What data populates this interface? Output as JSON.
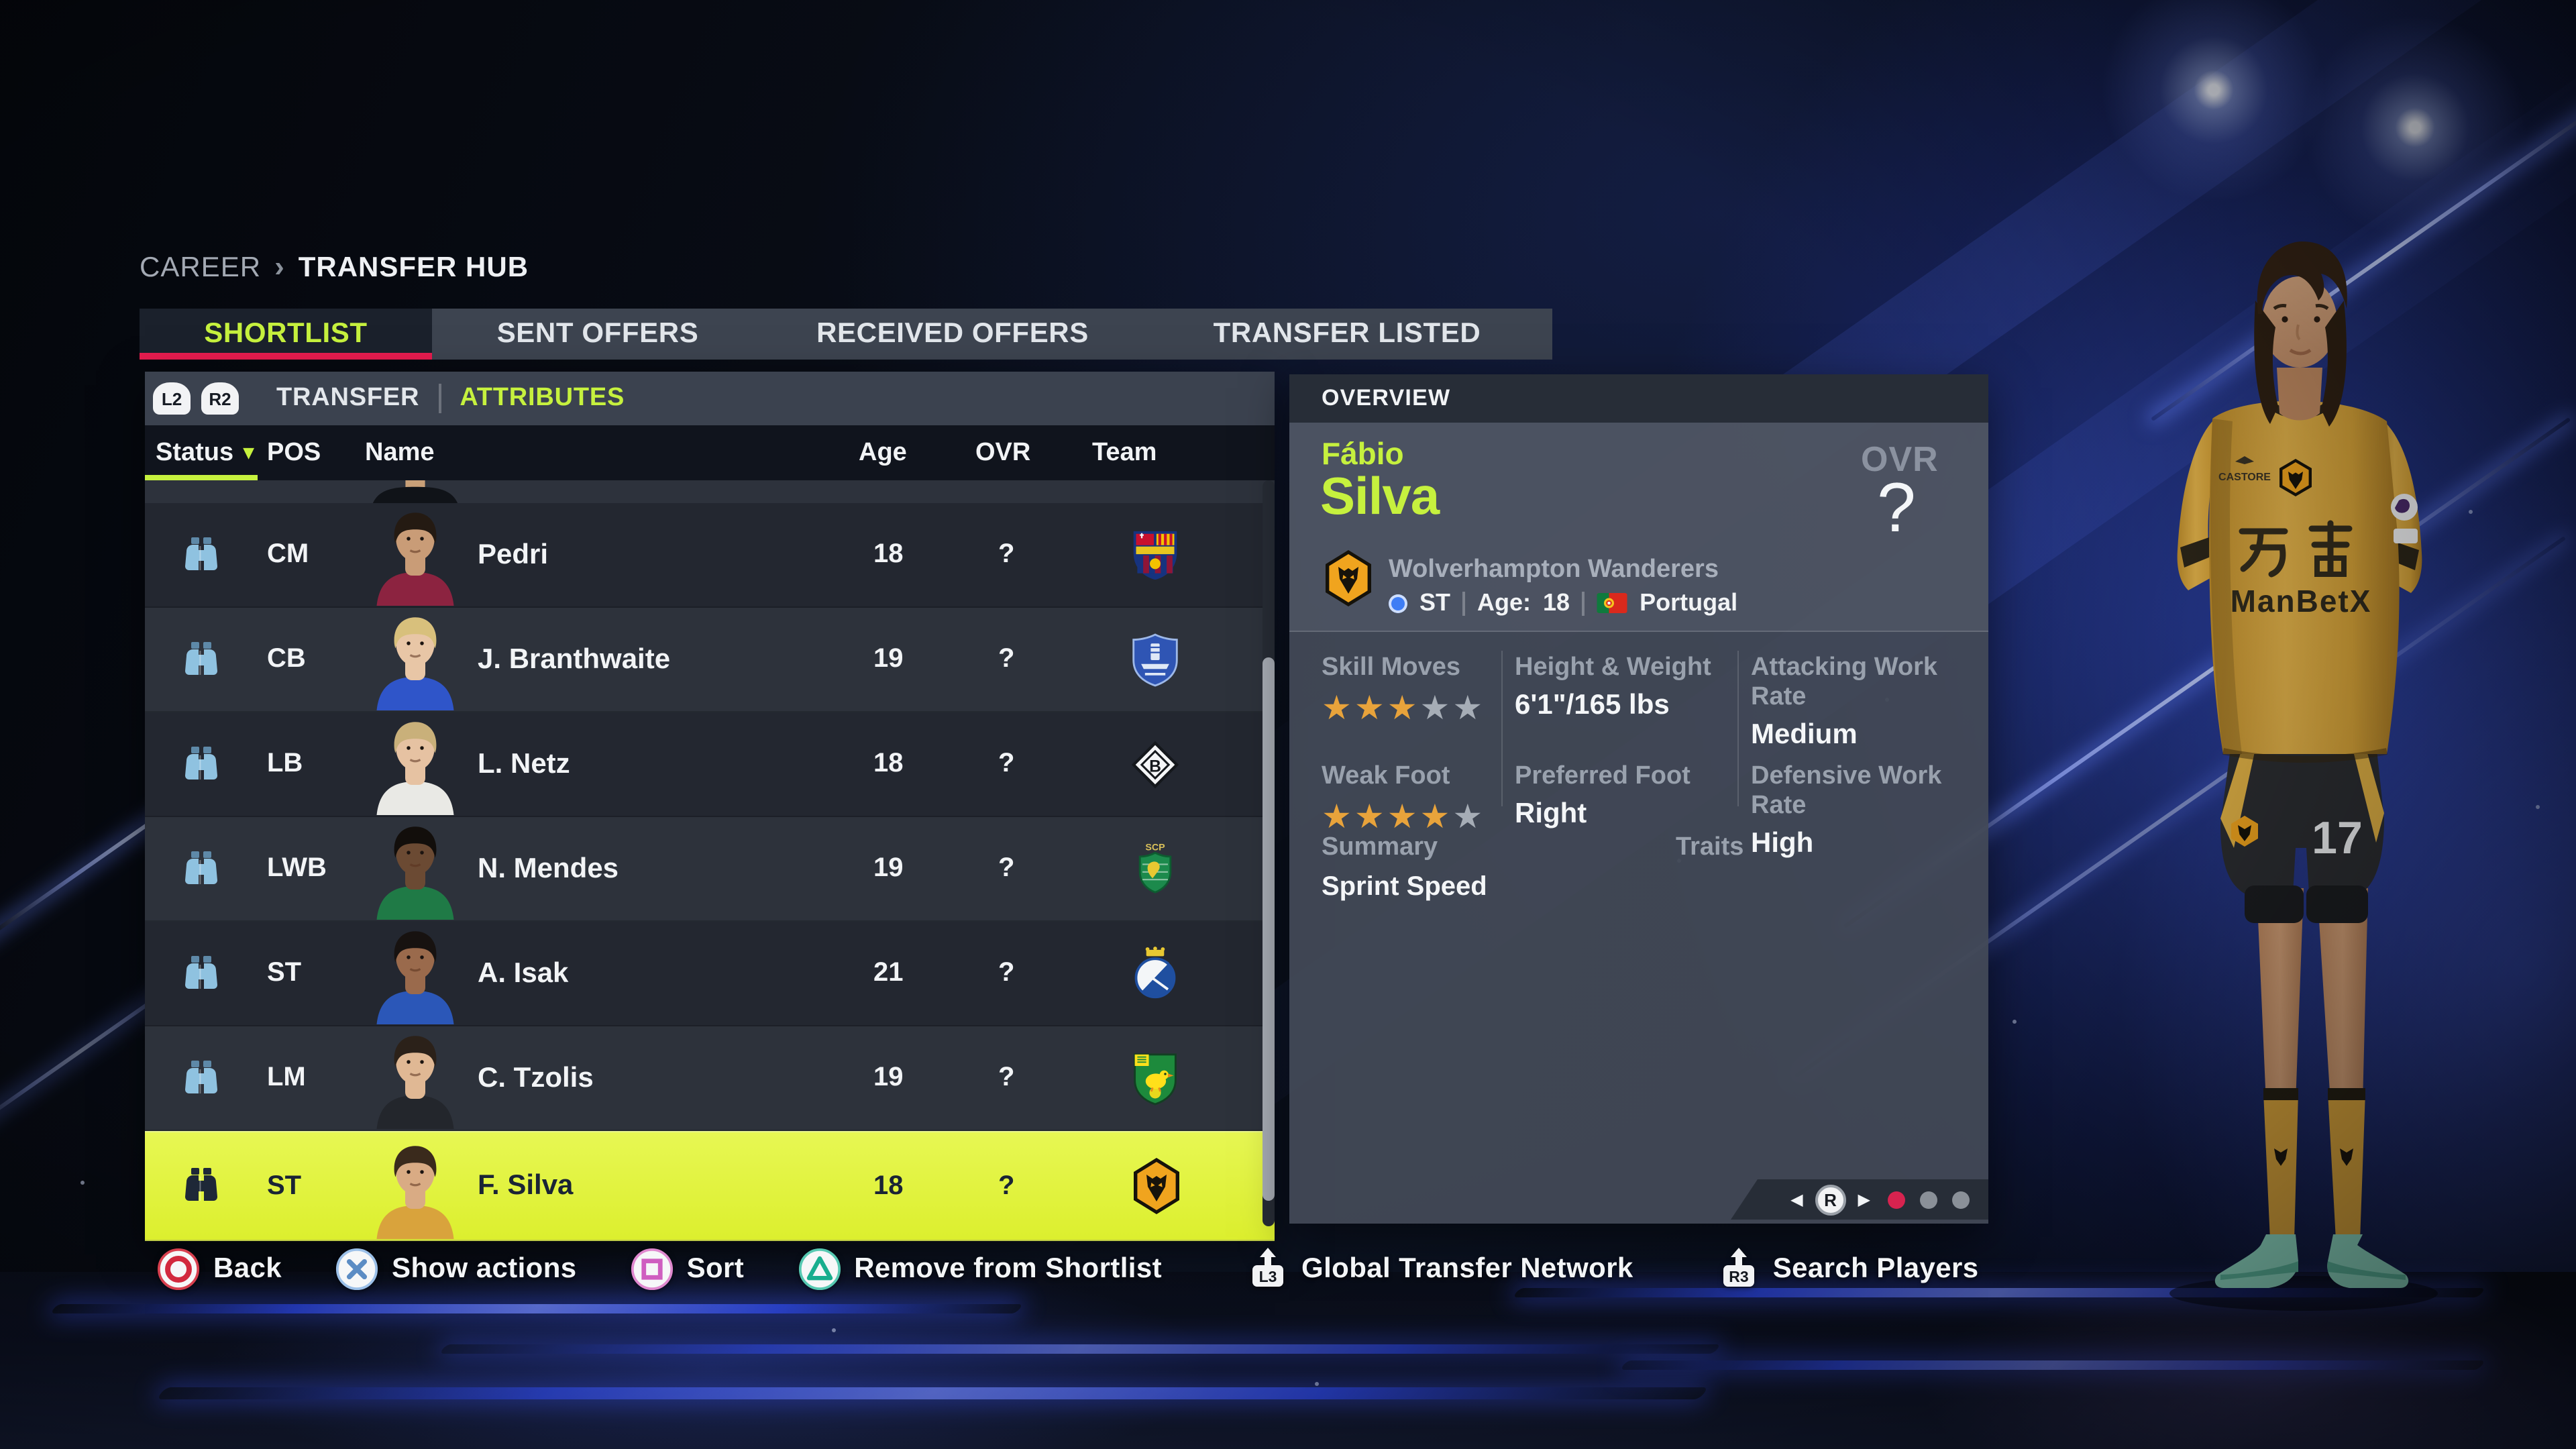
{
  "colors": {
    "accent_lime": "#c6f13e",
    "accent_crimson": "#e81c4f",
    "selected_row": "#e0f23c",
    "star_gold": "#e8a33b",
    "star_empty": "#a6adb6",
    "pagination_active": "#d7234f",
    "pagination_inactive": "#8a9098",
    "position_dot_blue": "#3e7df5"
  },
  "breadcrumb": {
    "section": "CAREER",
    "separator": "›",
    "page": "TRANSFER HUB"
  },
  "tabs": [
    {
      "label": "SHORTLIST",
      "active": true
    },
    {
      "label": "SENT OFFERS",
      "active": false
    },
    {
      "label": "RECEIVED OFFERS",
      "active": false
    },
    {
      "label": "TRANSFER LISTED",
      "active": false
    }
  ],
  "subtab_bar": {
    "l2_button": "L2",
    "r2_button": "R2",
    "items": [
      {
        "label": "TRANSFER",
        "active": false
      },
      {
        "label": "ATTRIBUTES",
        "active": true
      }
    ]
  },
  "shortlist_table": {
    "columns": [
      "Status",
      "POS",
      "Name",
      "Age",
      "OVR",
      "Team"
    ],
    "sorted_column": "Status",
    "rows": [
      {
        "pos": "CM",
        "name": "Pedri",
        "age": "18",
        "ovr": "?",
        "team_icon": "fc-barcelona-crest",
        "status_icon": "shortlist-binoculars",
        "selected": false,
        "portrait": {
          "skin": "#c99c77",
          "hair": "#241a12",
          "shirt": "#8c2340"
        }
      },
      {
        "pos": "CB",
        "name": "J. Branthwaite",
        "age": "19",
        "ovr": "?",
        "team_icon": "everton-crest",
        "status_icon": "shortlist-binoculars",
        "selected": false,
        "portrait": {
          "skin": "#e8c6a6",
          "hair": "#d8c07c",
          "shirt": "#2f55c9"
        }
      },
      {
        "pos": "LB",
        "name": "L. Netz",
        "age": "18",
        "ovr": "?",
        "team_icon": "borussia-moenchengladbach-crest",
        "status_icon": "shortlist-binoculars",
        "selected": false,
        "portrait": {
          "skin": "#e6c2a2",
          "hair": "#c9b07a",
          "shirt": "#e9e9e5"
        }
      },
      {
        "pos": "LWB",
        "name": "N. Mendes",
        "age": "19",
        "ovr": "?",
        "team_icon": "sporting-cp-crest",
        "status_icon": "shortlist-binoculars",
        "selected": false,
        "portrait": {
          "skin": "#6b4a33",
          "hair": "#120e0b",
          "shirt": "#1f7a46"
        }
      },
      {
        "pos": "ST",
        "name": "A. Isak",
        "age": "21",
        "ovr": "?",
        "team_icon": "real-sociedad-crest",
        "status_icon": "shortlist-binoculars",
        "selected": false,
        "portrait": {
          "skin": "#9a6a4c",
          "hair": "#171210",
          "shirt": "#2b57b8"
        }
      },
      {
        "pos": "LM",
        "name": "C. Tzolis",
        "age": "19",
        "ovr": "?",
        "team_icon": "norwich-city-crest",
        "status_icon": "shortlist-binoculars",
        "selected": false,
        "portrait": {
          "skin": "#e0b894",
          "hair": "#2b2119",
          "shirt": "#23262c"
        }
      },
      {
        "pos": "ST",
        "name": "F. Silva",
        "age": "18",
        "ovr": "?",
        "team_icon": "wolves-crest",
        "status_icon": "shortlist-binoculars",
        "selected": true,
        "portrait": {
          "skin": "#d9ab84",
          "hair": "#3a2a1c",
          "shirt": "#d9a33c"
        }
      }
    ]
  },
  "overview_panel": {
    "title": "OVERVIEW",
    "first_name": "Fábio",
    "last_name": "Silva",
    "ovr_label": "OVR",
    "ovr_value": "?",
    "club": "Wolverhampton Wanderers",
    "club_icon": "wolves-crest",
    "position": "ST",
    "age_label": "Age:",
    "age_value": "18",
    "nation": "Portugal",
    "nation_icon": "portugal-flag",
    "stats": [
      {
        "label": "Skill Moves",
        "type": "stars",
        "value": 3,
        "max": 5
      },
      {
        "label": "Height & Weight",
        "type": "text",
        "value": "6'1\"/165 lbs"
      },
      {
        "label": "Attacking Work Rate",
        "type": "text",
        "value": "Medium"
      },
      {
        "label": "Weak Foot",
        "type": "stars",
        "value": 4,
        "max": 5
      },
      {
        "label": "Preferred Foot",
        "type": "text",
        "value": "Right"
      },
      {
        "label": "Defensive Work Rate",
        "type": "text",
        "value": "High"
      }
    ],
    "summary": {
      "label": "Summary",
      "value": "Sprint Speed"
    },
    "traits": {
      "label": "Traits",
      "value": ""
    },
    "pager": {
      "button": "R",
      "dots_total": 3,
      "active_dot": 0
    }
  },
  "action_bar": [
    {
      "icon": "ps-circle-button",
      "label": "Back"
    },
    {
      "icon": "ps-cross-button",
      "label": "Show actions"
    },
    {
      "icon": "ps-square-button",
      "label": "Sort"
    },
    {
      "icon": "ps-triangle-button",
      "label": "Remove from Shortlist"
    },
    {
      "icon": "l3-stick-button",
      "label": "Global Transfer Network"
    },
    {
      "icon": "r3-stick-button",
      "label": "Search Players"
    }
  ],
  "player_render": {
    "jersey_sponsor": "ManBetX",
    "jersey_sponsor_cn": "万博",
    "jersey_brand": "CASTORE",
    "sleeve_patch": "No Room For Racism",
    "shorts_number": "17"
  }
}
